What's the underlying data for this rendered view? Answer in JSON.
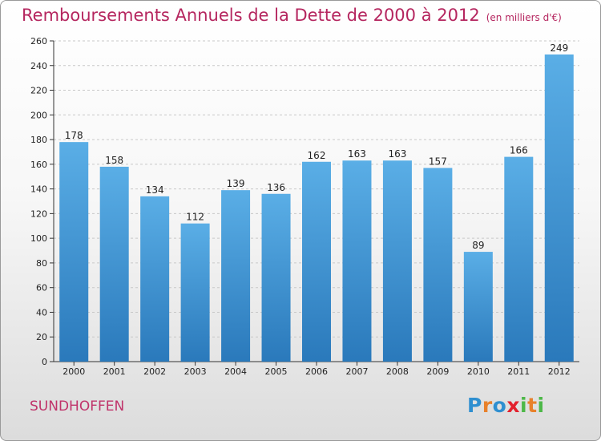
{
  "header": {
    "title": "Remboursements Annuels de la Dette de 2000 à 2012",
    "unit": "(en milliers d'€)"
  },
  "footer": {
    "commune": "SUNDHOFFEN",
    "logo": {
      "letters": [
        "P",
        "r",
        "o",
        "x",
        "i",
        "t",
        "i"
      ],
      "colors": [
        "#2f8fd0",
        "#e8812b",
        "#2f8fd0",
        "#e3212d",
        "#4db848",
        "#e8812b",
        "#4db848"
      ]
    }
  },
  "chart_data": {
    "type": "bar",
    "title": "Remboursements Annuels de la Dette de 2000 à 2012",
    "categories": [
      "2000",
      "2001",
      "2002",
      "2003",
      "2004",
      "2005",
      "2006",
      "2007",
      "2008",
      "2009",
      "2010",
      "2011",
      "2012"
    ],
    "values": [
      178,
      158,
      134,
      112,
      139,
      136,
      162,
      163,
      163,
      157,
      89,
      166,
      249
    ],
    "value_labels": [
      "178",
      "158",
      "134",
      "112",
      "139",
      "136",
      "162",
      "163",
      "163",
      "157",
      "89",
      "166",
      "249"
    ],
    "ylim": [
      0,
      260
    ],
    "yticks": [
      0,
      20,
      40,
      60,
      80,
      100,
      120,
      140,
      160,
      180,
      200,
      220,
      240,
      260
    ],
    "ytick_labels": [
      "0",
      "20",
      "40",
      "60",
      "80",
      "100",
      "120",
      "140",
      "160",
      "180",
      "200",
      "220",
      "240",
      "260"
    ],
    "grid": true,
    "colors": {
      "bar_top": "#5aaee6",
      "bar_bottom": "#2a79bb",
      "grid": "#c8c8c8",
      "title": "#b5265f"
    }
  }
}
